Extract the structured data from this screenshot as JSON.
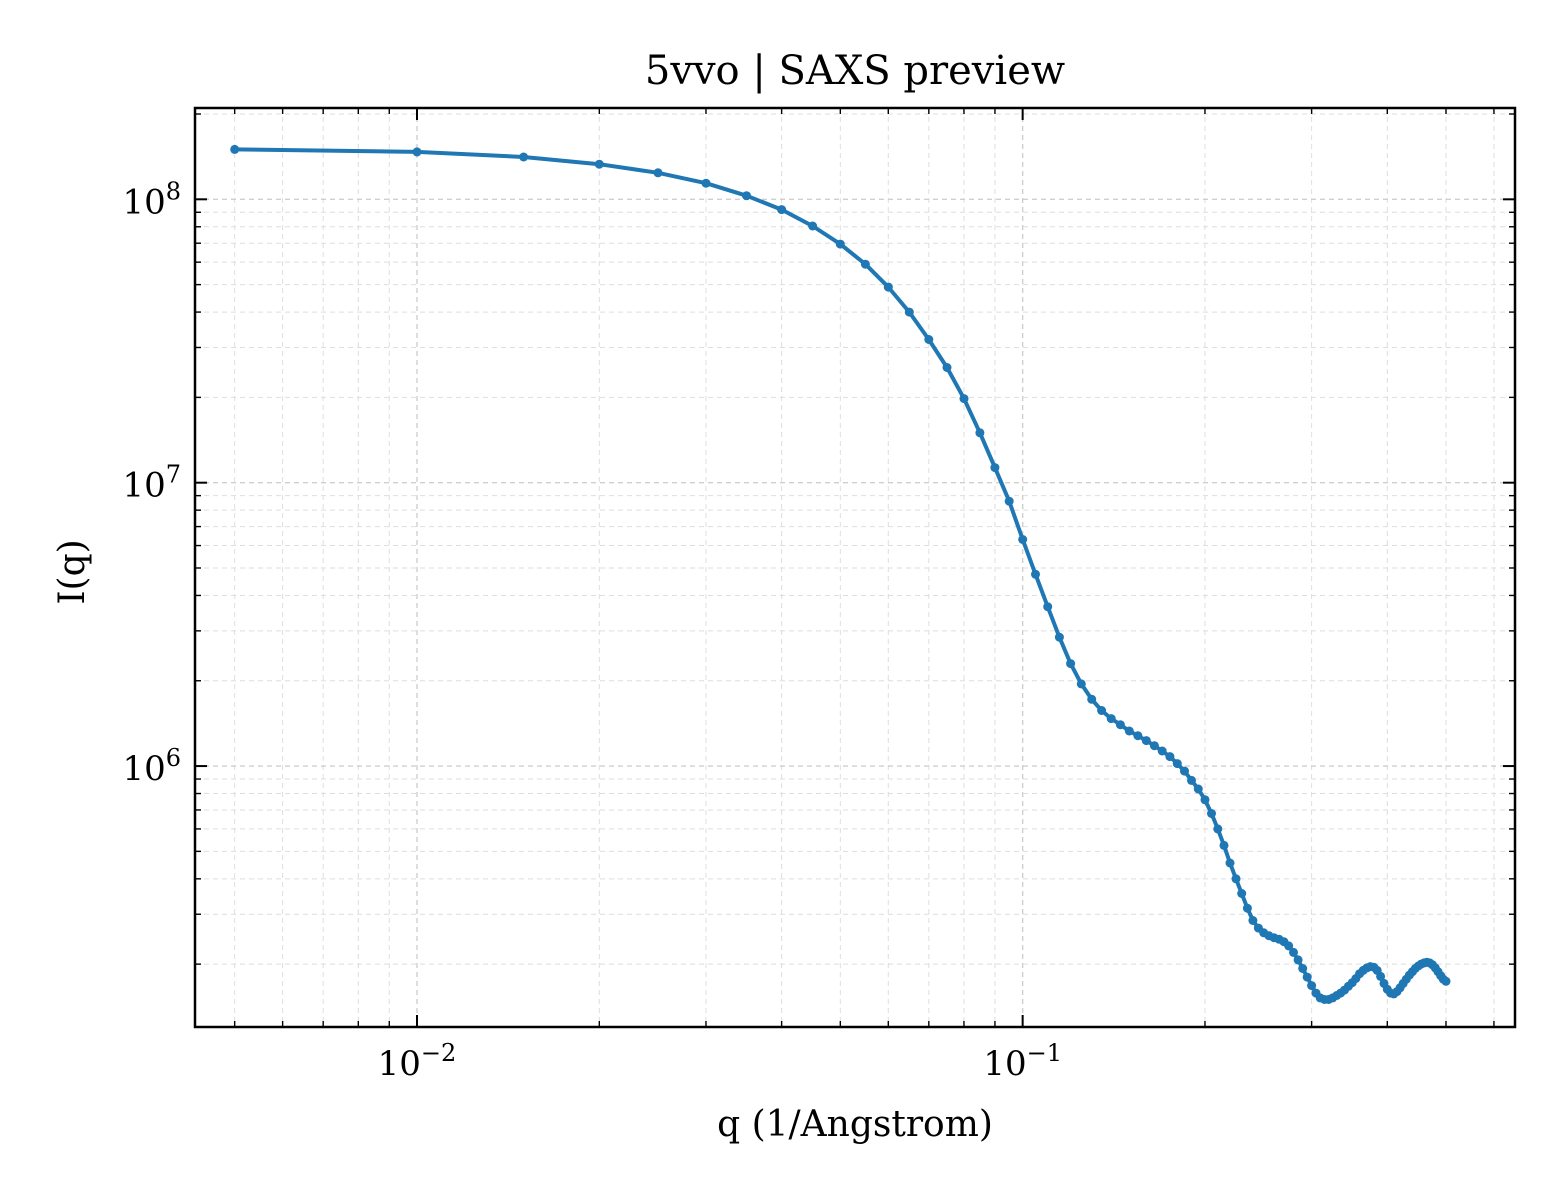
{
  "chart_data": {
    "type": "line",
    "title": "5vvo | SAXS preview",
    "xlabel": "q (1/Angstrom)",
    "ylabel": "I(q)",
    "xscale": "log",
    "yscale": "log",
    "xlim": [
      0.0043,
      0.65
    ],
    "ylim": [
      120000,
      210000000
    ],
    "grid": true,
    "x_tick_labels": [
      {
        "value": 0.01,
        "base": "10",
        "exp": "−2"
      },
      {
        "value": 0.1,
        "base": "10",
        "exp": "−1"
      }
    ],
    "y_tick_labels": [
      {
        "value": 1000000,
        "base": "10",
        "exp": "6"
      },
      {
        "value": 10000000,
        "base": "10",
        "exp": "7"
      },
      {
        "value": 100000000,
        "base": "10",
        "exp": "8"
      }
    ],
    "line_color": "#1f77b4",
    "series": [
      {
        "x": [
          0.005,
          0.01,
          0.015,
          0.02,
          0.025,
          0.03,
          0.035,
          0.04,
          0.045,
          0.05,
          0.055,
          0.06,
          0.065,
          0.07,
          0.075,
          0.08,
          0.085,
          0.09,
          0.095,
          0.1,
          0.105,
          0.11,
          0.115,
          0.12,
          0.125,
          0.13,
          0.135,
          0.14,
          0.145,
          0.15,
          0.155,
          0.16,
          0.165,
          0.17,
          0.175,
          0.18,
          0.185,
          0.19,
          0.195,
          0.2,
          0.205,
          0.21,
          0.215,
          0.22,
          0.225,
          0.23,
          0.235,
          0.24,
          0.245,
          0.25,
          0.255,
          0.26,
          0.265,
          0.27,
          0.275,
          0.28,
          0.285,
          0.29,
          0.295,
          0.3,
          0.305,
          0.31,
          0.315,
          0.32,
          0.325,
          0.33,
          0.335,
          0.34,
          0.345,
          0.35,
          0.355,
          0.36,
          0.365,
          0.37,
          0.375,
          0.38,
          0.385,
          0.39,
          0.395,
          0.4,
          0.405,
          0.41,
          0.415,
          0.42,
          0.425,
          0.43,
          0.435,
          0.44,
          0.445,
          0.45,
          0.455,
          0.46,
          0.465,
          0.47,
          0.475,
          0.48,
          0.485,
          0.49,
          0.495,
          0.5
        ],
        "y": [
          150000000,
          147000000,
          141000000,
          133000000,
          124000000,
          114000000,
          103000000,
          92000000,
          80500000,
          69500000,
          59000000,
          49000000,
          40000000,
          32000000,
          25500000,
          19800000,
          15000000,
          11300000,
          8600000,
          6300000,
          4750000,
          3650000,
          2850000,
          2300000,
          1950000,
          1720000,
          1570000,
          1470000,
          1400000,
          1330000,
          1280000,
          1230000,
          1180000,
          1130000,
          1080000,
          1020000,
          960000,
          890000,
          830000,
          760000,
          680000,
          600000,
          525000,
          455000,
          400000,
          355000,
          315000,
          285000,
          268000,
          258000,
          252000,
          248000,
          245000,
          240000,
          232000,
          220000,
          207000,
          193000,
          180000,
          168000,
          158000,
          152000,
          150000,
          150000,
          152000,
          155000,
          158000,
          162000,
          167000,
          172000,
          178000,
          185000,
          190000,
          194000,
          196000,
          195000,
          190000,
          181000,
          171000,
          163000,
          158000,
          157000,
          160000,
          165000,
          171000,
          177000,
          183000,
          188000,
          193000,
          197000,
          200000,
          202000,
          203000,
          202000,
          199000,
          194000,
          188000,
          182000,
          177000,
          174000
        ]
      }
    ]
  }
}
